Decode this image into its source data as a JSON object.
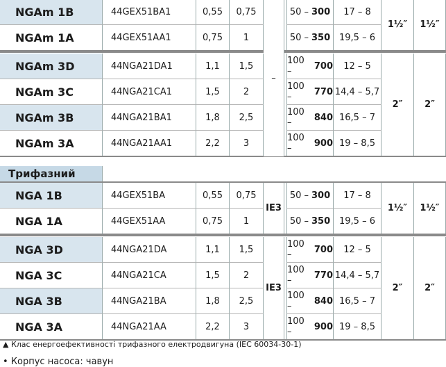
{
  "sections": [
    {
      "ie_class": "–",
      "subgroups": [
        {
          "suction": "1½″",
          "discharge": "1½″",
          "rows": [
            {
              "model": "NGAm 1B",
              "code": "44GEX51BA1",
              "kw": "0,55",
              "hp": "0,75",
              "range": [
                "50 –",
                "300"
              ],
              "head": "17 – 8"
            },
            {
              "model": "NGAm 1A",
              "code": "44GEX51AA1",
              "kw": "0,75",
              "hp": "1",
              "range": [
                "50 –",
                "350"
              ],
              "head": "19,5 – 6"
            }
          ]
        },
        {
          "suction": "2″",
          "discharge": "2″",
          "rows": [
            {
              "model": "NGAm 3D",
              "code": "44NGA21DA1",
              "kw": "1,1",
              "hp": "1,5",
              "range": [
                "100 –",
                "700"
              ],
              "head": "12 – 5"
            },
            {
              "model": "NGAm 3C",
              "code": "44NGA21CA1",
              "kw": "1,5",
              "hp": "2",
              "range": [
                "100 –",
                "770"
              ],
              "head": "14,4 – 5,7"
            },
            {
              "model": "NGAm 3B",
              "code": "44NGA21BA1",
              "kw": "1,8",
              "hp": "2,5",
              "range": [
                "100 –",
                "840"
              ],
              "head": "16,5 – 7"
            },
            {
              "model": "NGAm 3A",
              "code": "44NGA21AA1",
              "kw": "2,2",
              "hp": "3",
              "range": [
                "100 –",
                "900"
              ],
              "head": "19 – 8,5"
            }
          ]
        }
      ]
    },
    {
      "title": "Трифазний",
      "subgroups": [
        {
          "ie_class": "IE3",
          "suction": "1½″",
          "discharge": "1½″",
          "rows": [
            {
              "model": "NGA 1B",
              "code": "44GEX51BA",
              "kw": "0,55",
              "hp": "0,75",
              "range": [
                "50 –",
                "300"
              ],
              "head": "17 – 8"
            },
            {
              "model": "NGA 1A",
              "code": "44GEX51AA",
              "kw": "0,75",
              "hp": "1",
              "range": [
                "50 –",
                "350"
              ],
              "head": "19,5 – 6"
            }
          ]
        },
        {
          "ie_class": "IE3",
          "suction": "2″",
          "discharge": "2″",
          "rows": [
            {
              "model": "NGA 3D",
              "code": "44NGA21DA",
              "kw": "1,1",
              "hp": "1,5",
              "range": [
                "100 –",
                "700"
              ],
              "head": "12 – 5"
            },
            {
              "model": "NGA 3C",
              "code": "44NGA21CA",
              "kw": "1,5",
              "hp": "2",
              "range": [
                "100 –",
                "770"
              ],
              "head": "14,4 – 5,7"
            },
            {
              "model": "NGA 3B",
              "code": "44NGA21BA",
              "kw": "1,8",
              "hp": "2,5",
              "range": [
                "100 –",
                "840"
              ],
              "head": "16,5 – 7"
            },
            {
              "model": "NGA 3A",
              "code": "44NGA21AA",
              "kw": "2,2",
              "hp": "3",
              "range": [
                "100 –",
                "900"
              ],
              "head": "19 – 8,5"
            }
          ]
        }
      ]
    }
  ],
  "footnote": "▲ Клас енергоефективності трифазного електродвигуна (IEC 60034-30-1)",
  "bullet": "• Корпус насоса: чавун"
}
